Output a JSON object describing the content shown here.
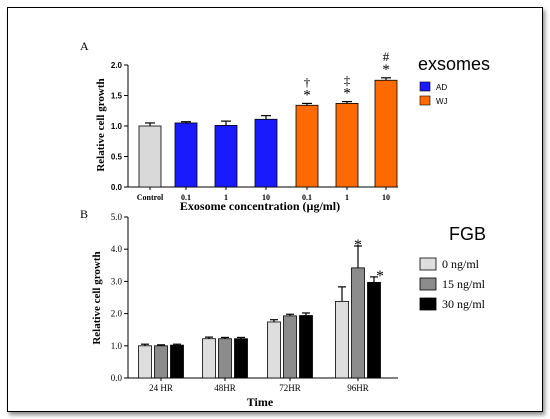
{
  "chart_data": [
    {
      "panel": "A",
      "type": "bar",
      "title": "",
      "xlabel": "Exosome concentration (µg/ml)",
      "ylabel": "Relative cell growth",
      "ylim": [
        0,
        2.0
      ],
      "yticks": [
        "0.0",
        "0.5",
        "1.0",
        "1.5",
        "2.0"
      ],
      "categories": [
        "Control",
        "0.1",
        "1",
        "10",
        "0.1",
        "1",
        "10"
      ],
      "values": [
        1.0,
        1.05,
        1.01,
        1.11,
        1.34,
        1.37,
        1.75
      ],
      "errors": [
        0.05,
        0.02,
        0.07,
        0.06,
        0.03,
        0.03,
        0.04
      ],
      "groups": [
        "control",
        "AD",
        "AD",
        "AD",
        "WJ",
        "WJ",
        "WJ"
      ],
      "annotations": [
        {
          "bar": 4,
          "marks": [
            "†",
            "*"
          ]
        },
        {
          "bar": 5,
          "marks": [
            "‡",
            "*"
          ]
        },
        {
          "bar": 6,
          "marks": [
            "#",
            "*"
          ]
        }
      ],
      "legend": {
        "title": "exsomes",
        "placement": "top-right",
        "entries": [
          {
            "name": "AD",
            "color": "#1a1aff"
          },
          {
            "name": "WJ",
            "color": "#ff6a00"
          }
        ]
      },
      "colors": {
        "control": "#d9d9d9",
        "AD": "#1a1aff",
        "WJ": "#ff6a00"
      },
      "grid": false
    },
    {
      "panel": "B",
      "type": "bar",
      "title": "",
      "xlabel": "Time",
      "ylabel": "Relative cell growth",
      "ylim": [
        0,
        5.0
      ],
      "yticks": [
        "0.0",
        "1.0",
        "2.0",
        "3.0",
        "4.0",
        "5.0"
      ],
      "categories": [
        "24 HR",
        "48HR",
        "72HR",
        "96HR"
      ],
      "series": [
        {
          "name": "0 ng/ml",
          "color": "#dedede",
          "values": [
            1.0,
            1.22,
            1.74,
            2.38
          ],
          "errors": [
            0.05,
            0.05,
            0.07,
            0.45
          ]
        },
        {
          "name": "15 ng/ml",
          "color": "#8c8c8c",
          "values": [
            1.0,
            1.22,
            1.93,
            3.42
          ],
          "errors": [
            0.03,
            0.04,
            0.05,
            0.68
          ]
        },
        {
          "name": "30 ng/ml",
          "color": "#000000",
          "values": [
            1.02,
            1.22,
            1.94,
            2.97
          ],
          "errors": [
            0.03,
            0.04,
            0.08,
            0.17
          ]
        }
      ],
      "annotations": [
        {
          "category": 3,
          "series": 1,
          "marks": [
            "*"
          ]
        },
        {
          "category": 3,
          "series": 2,
          "marks": [
            "*"
          ]
        }
      ],
      "legend": {
        "title": "FGB",
        "placement": "top-right"
      },
      "grid": false
    }
  ]
}
